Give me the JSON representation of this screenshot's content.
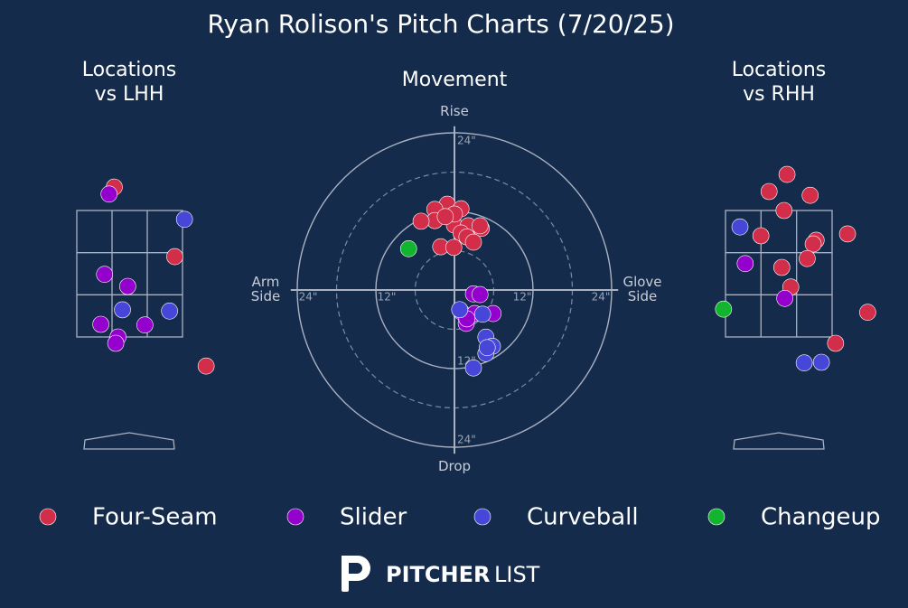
{
  "title": "Ryan Rolison's Pitch Charts (7/20/25)",
  "chart_data": [
    {
      "type": "scatter",
      "title": "Locations\nvs LHH",
      "xlim": [
        -1.5,
        1.5
      ],
      "ylim": [
        0.5,
        4.7
      ],
      "series": [
        {
          "color": "#d22d49",
          "x": [
            -0.2,
            0.61,
            1.03
          ],
          "values": [
            3.87,
            2.77,
            1.04
          ]
        },
        {
          "color": "#9400cc",
          "x": [
            -0.27,
            -0.33,
            -0.02,
            -0.38,
            0.21,
            -0.15,
            -0.18
          ],
          "values": [
            3.76,
            2.49,
            2.3,
            1.7,
            1.69,
            1.5,
            1.4
          ]
        },
        {
          "color": "#4646d8",
          "x": [
            0.74,
            -0.09,
            0.54
          ],
          "values": [
            3.36,
            1.93,
            1.91
          ]
        }
      ]
    },
    {
      "type": "polar-movement",
      "title": "Movement",
      "axis_labels": {
        "top": "Rise",
        "bottom": "Drop",
        "left": "Arm\nSide",
        "right": "Glove\nSide"
      },
      "xlim": [
        -25,
        25
      ],
      "ylim": [
        -25,
        25
      ],
      "xticks": [
        {
          "value": -24,
          "label": "24\""
        },
        {
          "value": -12,
          "label": "12\""
        },
        {
          "value": 12,
          "label": "12\""
        },
        {
          "value": 24,
          "label": "24\""
        }
      ],
      "yticks": [
        {
          "value": 24,
          "label": "24\""
        },
        {
          "value": -12,
          "label": "12\""
        },
        {
          "value": -24,
          "label": "24\""
        }
      ],
      "minor_rings": [
        6,
        18
      ],
      "series": [
        {
          "name": "Four-Seam",
          "color": "#d22d49",
          "x": [
            -1.1,
            -3.0,
            1.0,
            -3.0,
            -5.1,
            -0.4,
            0,
            2.1,
            4.1,
            3.9,
            1.0,
            1.9,
            2.9,
            -2.1,
            -0.1,
            0,
            -1.4
          ],
          "values": [
            13.1,
            12.3,
            12.4,
            10.6,
            10.5,
            11.3,
            9.9,
            9.8,
            9.4,
            9.8,
            8.7,
            8.1,
            7.3,
            6.6,
            6.5,
            11.6,
            11.2
          ]
        },
        {
          "name": "Slider",
          "color": "#9400cc",
          "x": [
            2.9,
            3.9,
            1.0,
            3.1,
            5.9,
            1.8,
            1.9
          ],
          "values": [
            -0.6,
            -0.7,
            -3.3,
            -3.6,
            -3.6,
            -5.1,
            -4.4
          ]
        },
        {
          "name": "Curveball",
          "color": "#4646d8",
          "x": [
            0.8,
            4.3,
            4.8,
            5.8,
            4.8,
            5.0,
            2.9
          ],
          "values": [
            -3.0,
            -3.7,
            -7.2,
            -8.6,
            -9.7,
            -8.8,
            -11.9
          ]
        },
        {
          "name": "Changeup",
          "color": "#12b52e",
          "x": [
            -7.0
          ],
          "values": [
            6.3
          ]
        }
      ]
    },
    {
      "type": "scatter",
      "title": "Locations\nvs RHH",
      "xlim": [
        -1.5,
        1.5
      ],
      "ylim": [
        0.5,
        4.7
      ],
      "series": [
        {
          "color": "#d22d49",
          "x": [
            0.11,
            -0.13,
            0.42,
            0.07,
            -0.24,
            0.92,
            0.5,
            0.46,
            0.04,
            0.38,
            0.16,
            1.19,
            0.76
          ],
          "values": [
            4.07,
            3.8,
            3.74,
            3.5,
            3.1,
            3.13,
            3.03,
            2.97,
            2.6,
            2.74,
            2.29,
            1.89,
            1.4
          ]
        },
        {
          "color": "#9400cc",
          "x": [
            -0.45,
            0.08
          ],
          "values": [
            2.66,
            2.11
          ]
        },
        {
          "color": "#4646d8",
          "x": [
            -0.52,
            0.34,
            0.57
          ],
          "values": [
            3.24,
            1.09,
            1.1
          ]
        },
        {
          "color": "#12b52e",
          "x": [
            -0.74
          ],
          "values": [
            1.94
          ]
        }
      ]
    }
  ],
  "brand": {
    "bold": "PITCHER",
    "light": "LIST"
  }
}
